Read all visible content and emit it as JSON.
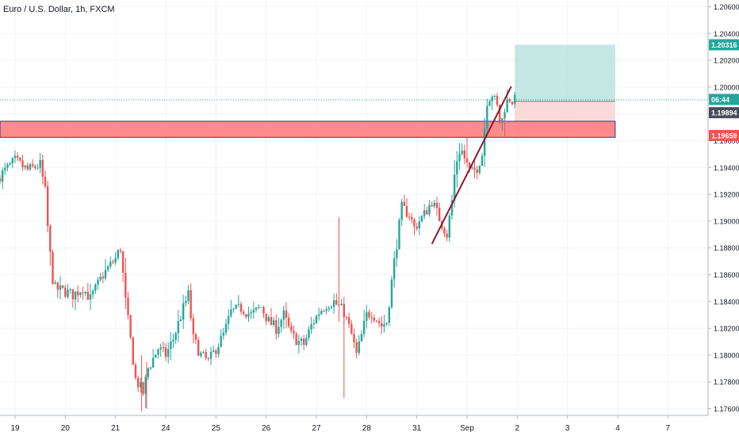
{
  "header": {
    "title": "Euro / U.S. Dollar, 1h, FXCM"
  },
  "colors": {
    "up": "#26a69a",
    "down": "#ef5350",
    "grid": "#f0f3fa",
    "axis_text": "#131722",
    "zone_fill": "#ff8080",
    "zone_border": "#2a2e8f",
    "target_fill": "#b2dfdb",
    "stop_fill": "#f9d0cf",
    "trendline": "#8b1a2b",
    "badge_green": "#26a69a",
    "badge_gray": "#4a4e5a",
    "badge_red": "#ef5350"
  },
  "chart_data": {
    "type": "candlestick",
    "symbol": "Euro / U.S. Dollar",
    "interval": "1h",
    "exchange": "FXCM",
    "ylim": [
      1.1755,
      1.2065
    ],
    "x_range": [
      -0.3,
      13.8
    ],
    "y_ticks": [
      "1.20600",
      "1.20400",
      "1.20200",
      "1.20000",
      "1.19800",
      "1.19600",
      "1.19400",
      "1.19200",
      "1.19000",
      "1.18800",
      "1.18600",
      "1.18400",
      "1.18200",
      "1.18000",
      "1.17800",
      "1.17600"
    ],
    "x_ticks": [
      {
        "label": "19",
        "pos": 0
      },
      {
        "label": "20",
        "pos": 1
      },
      {
        "label": "21",
        "pos": 2
      },
      {
        "label": "24",
        "pos": 3
      },
      {
        "label": "25",
        "pos": 4
      },
      {
        "label": "26",
        "pos": 5
      },
      {
        "label": "27",
        "pos": 6
      },
      {
        "label": "28",
        "pos": 7
      },
      {
        "label": "31",
        "pos": 8
      },
      {
        "label": "Sep",
        "pos": 9
      },
      {
        "label": "2",
        "pos": 10
      },
      {
        "label": "3",
        "pos": 11
      },
      {
        "label": "4",
        "pos": 12
      },
      {
        "label": "7",
        "pos": 13
      }
    ],
    "path": [
      [
        -0.3,
        1.1932
      ],
      [
        0.05,
        1.1945
      ],
      [
        0.3,
        1.1938
      ],
      [
        0.55,
        1.1942
      ],
      [
        0.65,
        1.1922
      ],
      [
        0.72,
        1.1885
      ],
      [
        0.82,
        1.185
      ],
      [
        1.0,
        1.1848
      ],
      [
        1.2,
        1.1845
      ],
      [
        1.4,
        1.185
      ],
      [
        1.55,
        1.1842
      ],
      [
        1.8,
        1.186
      ],
      [
        2.05,
        1.1872
      ],
      [
        2.15,
        1.188
      ],
      [
        2.25,
        1.184
      ],
      [
        2.32,
        1.182
      ],
      [
        2.45,
        1.1782
      ],
      [
        2.6,
        1.1772
      ],
      [
        2.7,
        1.179
      ],
      [
        2.9,
        1.1805
      ],
      [
        3.05,
        1.18
      ],
      [
        3.2,
        1.1812
      ],
      [
        3.4,
        1.1835
      ],
      [
        3.5,
        1.1845
      ],
      [
        3.6,
        1.1812
      ],
      [
        3.75,
        1.18
      ],
      [
        3.9,
        1.1795
      ],
      [
        4.05,
        1.1805
      ],
      [
        4.2,
        1.1815
      ],
      [
        4.35,
        1.1832
      ],
      [
        4.55,
        1.1835
      ],
      [
        4.75,
        1.183
      ],
      [
        4.95,
        1.1836
      ],
      [
        5.1,
        1.1825
      ],
      [
        5.25,
        1.182
      ],
      [
        5.4,
        1.183
      ],
      [
        5.55,
        1.1815
      ],
      [
        5.7,
        1.181
      ],
      [
        5.8,
        1.1808
      ],
      [
        5.95,
        1.1822
      ],
      [
        6.1,
        1.1832
      ],
      [
        6.25,
        1.1838
      ],
      [
        6.4,
        1.184
      ],
      [
        6.6,
        1.1832
      ],
      [
        6.75,
        1.1815
      ],
      [
        6.85,
        1.18
      ],
      [
        6.92,
        1.181
      ],
      [
        7.05,
        1.183
      ],
      [
        7.15,
        1.1832
      ],
      [
        7.35,
        1.1822
      ],
      [
        7.45,
        1.1825
      ],
      [
        7.6,
        1.187
      ],
      [
        7.75,
        1.191
      ],
      [
        7.9,
        1.1905
      ],
      [
        8.0,
        1.1895
      ],
      [
        8.2,
        1.1905
      ],
      [
        8.35,
        1.1915
      ],
      [
        8.5,
        1.1902
      ],
      [
        8.65,
        1.189
      ],
      [
        8.75,
        1.1915
      ],
      [
        8.82,
        1.1942
      ],
      [
        8.92,
        1.1955
      ],
      [
        9.02,
        1.1945
      ],
      [
        9.12,
        1.1935
      ],
      [
        9.25,
        1.194
      ],
      [
        9.35,
        1.195
      ],
      [
        9.45,
        1.199
      ],
      [
        9.55,
        1.1995
      ],
      [
        9.65,
        1.1985
      ],
      [
        9.72,
        1.197
      ],
      [
        9.8,
        1.1985
      ],
      [
        9.88,
        1.1992
      ],
      [
        9.95,
        1.199
      ]
    ],
    "spikes": [
      {
        "x": 6.45,
        "high": 1.1903,
        "low": 1.1825
      },
      {
        "x": 6.55,
        "high": 1.1835,
        "low": 1.1768
      },
      {
        "x": 2.52,
        "high": 1.18,
        "low": 1.1758
      },
      {
        "x": 2.62,
        "high": 1.1795,
        "low": 1.176
      },
      {
        "x": 9.0,
        "high": 1.1962,
        "low": 1.194
      },
      {
        "x": 9.75,
        "high": 1.1978,
        "low": 1.1962
      }
    ],
    "support_zone": {
      "x0": -0.3,
      "x1": 11.95,
      "top": 1.19745,
      "bottom": 1.19625
    },
    "position": {
      "x0": 9.95,
      "x1": 11.95,
      "entry": 1.19894,
      "target": 1.20316,
      "stop": 1.19659
    },
    "trendline": {
      "x0": 8.3,
      "y0": 1.1883,
      "x1": 9.88,
      "y1": 1.20005
    },
    "current_price_line": 1.19905,
    "labels": {
      "target": "1.20316",
      "countdown": "06:44",
      "entry": "1.19894",
      "stop": "1.19659"
    }
  }
}
